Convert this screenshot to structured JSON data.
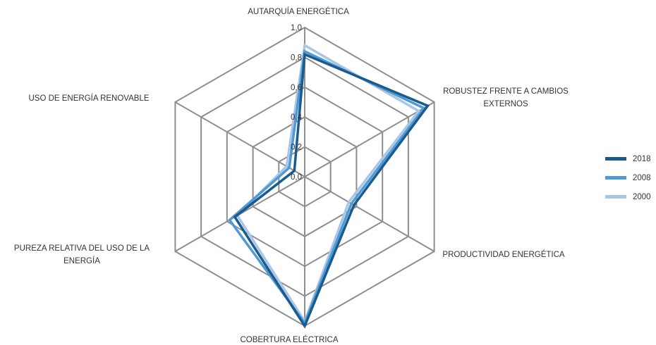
{
  "chart_data": {
    "type": "radar",
    "axes": [
      "AUTARQUÍA ENERGÉTICA",
      "ROBUSTEZ FRENTE A CAMBIOS EXTERNOS",
      "PRODUCTIVIDAD ENERGÉTICA",
      "COBERTURA ELÉCTRICA",
      "PUREZA RELATIVA DEL USO DE LA ENERGÍA",
      "USO DE ENERGÍA RENOVABLE"
    ],
    "axis_label_lines": [
      [
        "AUTARQUÍA ENERGÉTICA"
      ],
      [
        "ROBUSTEZ FRENTE A CAMBIOS",
        "EXTERNOS"
      ],
      [
        "PRODUCTIVIDAD ENERGÉTICA"
      ],
      [
        "COBERTURA ELÉCTRICA"
      ],
      [
        "PUREZA RELATIVA DEL USO DE LA",
        "ENERGÍA"
      ],
      [
        "USO DE ENERGÍA RENOVABLE"
      ]
    ],
    "ticks": [
      "0,0",
      "0,2",
      "0,4",
      "0,6",
      "0,8",
      "1,0"
    ],
    "range": [
      0,
      1
    ],
    "series": [
      {
        "name": "2018",
        "color": "#1b5a8c",
        "values": [
          0.82,
          0.95,
          0.38,
          1.0,
          0.54,
          0.08
        ]
      },
      {
        "name": "2008",
        "color": "#4f9ad2",
        "values": [
          0.84,
          0.92,
          0.36,
          0.98,
          0.58,
          0.12
        ]
      },
      {
        "name": "2000",
        "color": "#a9c6e8",
        "values": [
          0.88,
          0.88,
          0.34,
          0.97,
          0.52,
          0.14
        ]
      }
    ],
    "grid": true,
    "legend_position": "right"
  }
}
